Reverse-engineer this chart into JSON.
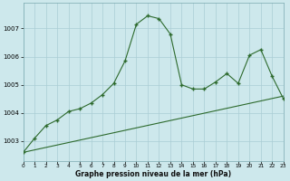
{
  "hours": [
    0,
    1,
    2,
    3,
    4,
    5,
    6,
    7,
    8,
    9,
    10,
    11,
    12,
    13,
    14,
    15,
    16,
    17,
    18,
    19,
    20,
    21,
    22,
    23
  ],
  "pressure_line": [
    1002.6,
    1003.1,
    1003.55,
    1003.75,
    1004.05,
    1004.15,
    1004.35,
    1004.65,
    1005.05,
    1005.85,
    1007.15,
    1007.45,
    1007.35,
    1006.8,
    1005.0,
    1004.85,
    1004.85,
    1005.1,
    1005.4,
    1005.05,
    1006.05,
    1006.25,
    1005.3,
    1004.5
  ],
  "trend_x": [
    0,
    23
  ],
  "trend_y": [
    1002.6,
    1004.6
  ],
  "line_color": "#2d6a2d",
  "bg_color": "#cde8ec",
  "grid_color": "#aacdd4",
  "xlabel": "Graphe pression niveau de la mer (hPa)",
  "ylim_min": 1002.3,
  "ylim_max": 1007.9,
  "xlim_min": 0,
  "xlim_max": 23,
  "yticks": [
    1003,
    1004,
    1005,
    1006,
    1007
  ],
  "xticks": [
    0,
    1,
    2,
    3,
    4,
    5,
    6,
    7,
    8,
    9,
    10,
    11,
    12,
    13,
    14,
    15,
    16,
    17,
    18,
    19,
    20,
    21,
    22,
    23
  ]
}
